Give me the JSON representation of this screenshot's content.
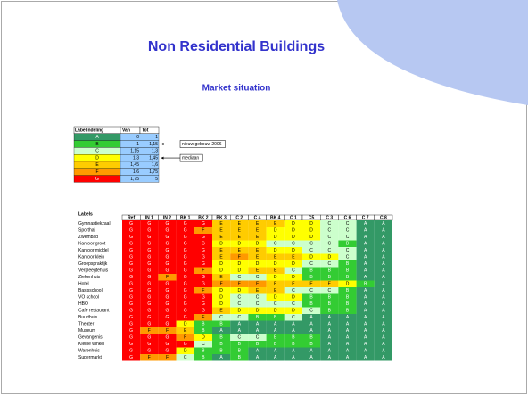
{
  "header": {
    "title": "Non Residential Buildings",
    "subtitle": "Market situation"
  },
  "colors": {
    "A": "#339966",
    "B": "#33cc33",
    "C": "#ccffcc",
    "D": "#ffff00",
    "E": "#ffcc00",
    "F": "#ff9900",
    "G": "#ff0000"
  },
  "legend": {
    "headers": [
      "Labelindeling",
      "Van",
      "Tot"
    ],
    "rows": [
      {
        "label": "A",
        "van": "0",
        "tot": "1"
      },
      {
        "label": "B",
        "van": "1",
        "tot": "1,15"
      },
      {
        "label": "C",
        "van": "1,15",
        "tot": "1,3"
      },
      {
        "label": "D",
        "van": "1,3",
        "tot": "1,45"
      },
      {
        "label": "E",
        "van": "1,45",
        "tot": "1,6"
      },
      {
        "label": "F",
        "van": "1,6",
        "tot": "1,75"
      },
      {
        "label": "G",
        "van": "1,75",
        "tot": "5"
      }
    ]
  },
  "annotations": [
    {
      "text": "nieuw gebouw 2006",
      "row": 1
    },
    {
      "text": "mediaan",
      "row": 3
    }
  ],
  "matrix": {
    "label_header": "Labels",
    "columns": [
      "Ref",
      "IN 1",
      "IN 2",
      "BK 1",
      "BK 2",
      "BK 3",
      "C 2",
      "C 4",
      "BK 4",
      "C 1",
      "C5",
      "C 3",
      "C 6",
      "C 7",
      "C 8"
    ],
    "rows": [
      {
        "label": "Gymnastiekzaal",
        "values": [
          "G",
          "G",
          "G",
          "G",
          "G",
          "E",
          "E",
          "E",
          "E",
          "D",
          "D",
          "C",
          "C",
          "A",
          "A"
        ]
      },
      {
        "label": "Sporthal",
        "values": [
          "G",
          "G",
          "G",
          "G",
          "F",
          "E",
          "E",
          "E",
          "D",
          "D",
          "D",
          "C",
          "C",
          "A",
          "A"
        ]
      },
      {
        "label": "Zwembad",
        "values": [
          "G",
          "G",
          "G",
          "G",
          "G",
          "E",
          "E",
          "E",
          "D",
          "D",
          "D",
          "C",
          "C",
          "A",
          "A"
        ]
      },
      {
        "label": "Kantoor groot",
        "values": [
          "G",
          "G",
          "G",
          "G",
          "G",
          "D",
          "D",
          "D",
          "C",
          "C",
          "C",
          "C",
          "B",
          "A",
          "A"
        ]
      },
      {
        "label": "Kantoor middel",
        "values": [
          "G",
          "G",
          "G",
          "G",
          "G",
          "E",
          "E",
          "E",
          "D",
          "D",
          "C",
          "C",
          "C",
          "A",
          "A"
        ]
      },
      {
        "label": "Kantoor klein",
        "values": [
          "G",
          "G",
          "G",
          "G",
          "G",
          "E",
          "F",
          "E",
          "E",
          "E",
          "D",
          "D",
          "C",
          "A",
          "A"
        ]
      },
      {
        "label": "Groepspraktijk",
        "values": [
          "G",
          "G",
          "G",
          "G",
          "G",
          "D",
          "D",
          "D",
          "D",
          "D",
          "C",
          "C",
          "B",
          "A",
          "A"
        ]
      },
      {
        "label": "Verpleegtehuis",
        "values": [
          "G",
          "G",
          "G",
          "G",
          "F",
          "D",
          "D",
          "E",
          "E",
          "C",
          "B",
          "B",
          "B",
          "A",
          "A"
        ]
      },
      {
        "label": "Ziekenhuis",
        "values": [
          "G",
          "G",
          "F",
          "G",
          "G",
          "E",
          "C",
          "C",
          "D",
          "D",
          "B",
          "B",
          "B",
          "A",
          "A"
        ]
      },
      {
        "label": "Hotel",
        "values": [
          "G",
          "G",
          "G",
          "G",
          "G",
          "F",
          "F",
          "F",
          "E",
          "E",
          "E",
          "E",
          "D",
          "B",
          "A"
        ]
      },
      {
        "label": "Basisschool",
        "values": [
          "G",
          "G",
          "G",
          "G",
          "F",
          "D",
          "D",
          "E",
          "E",
          "C",
          "C",
          "C",
          "B",
          "A",
          "A"
        ]
      },
      {
        "label": "VO school",
        "values": [
          "G",
          "G",
          "G",
          "G",
          "G",
          "D",
          "C",
          "C",
          "D",
          "D",
          "B",
          "B",
          "B",
          "A",
          "A"
        ]
      },
      {
        "label": "HBO",
        "values": [
          "G",
          "G",
          "G",
          "G",
          "G",
          "D",
          "C",
          "C",
          "C",
          "C",
          "B",
          "B",
          "B",
          "A",
          "A"
        ]
      },
      {
        "label": "Cafe restaurant",
        "values": [
          "G",
          "G",
          "G",
          "G",
          "G",
          "E",
          "D",
          "D",
          "D",
          "D",
          "C",
          "B",
          "B",
          "A",
          "A"
        ]
      },
      {
        "label": "Buurthuis",
        "values": [
          "G",
          "G",
          "G",
          "G",
          "F",
          "C",
          "C",
          "B",
          "B",
          "C",
          "A",
          "A",
          "A",
          "A",
          "A"
        ]
      },
      {
        "label": "Theater",
        "values": [
          "G",
          "G",
          "G",
          "D",
          "B",
          "B",
          "A",
          "A",
          "A",
          "A",
          "A",
          "A",
          "A",
          "A",
          "A"
        ]
      },
      {
        "label": "Museum",
        "values": [
          "G",
          "F",
          "F",
          "E",
          "B",
          "A",
          "A",
          "A",
          "A",
          "A",
          "A",
          "A",
          "A",
          "A",
          "A"
        ]
      },
      {
        "label": "Gevangenis",
        "values": [
          "G",
          "G",
          "G",
          "F",
          "D",
          "B",
          "C",
          "C",
          "B",
          "B",
          "B",
          "A",
          "A",
          "A",
          "A"
        ]
      },
      {
        "label": "Kleine winkel",
        "values": [
          "G",
          "G",
          "G",
          "G",
          "C",
          "B",
          "B",
          "B",
          "B",
          "B",
          "B",
          "A",
          "A",
          "A",
          "A"
        ]
      },
      {
        "label": "Warenhuis",
        "values": [
          "G",
          "G",
          "G",
          "D",
          "B",
          "B",
          "B",
          "A",
          "A",
          "A",
          "A",
          "A",
          "A",
          "A",
          "A"
        ]
      },
      {
        "label": "Supermarkt",
        "values": [
          "G",
          "F",
          "F",
          "C",
          "B",
          "A",
          "B",
          "A",
          "A",
          "A",
          "A",
          "A",
          "A",
          "A",
          "A"
        ]
      }
    ]
  }
}
